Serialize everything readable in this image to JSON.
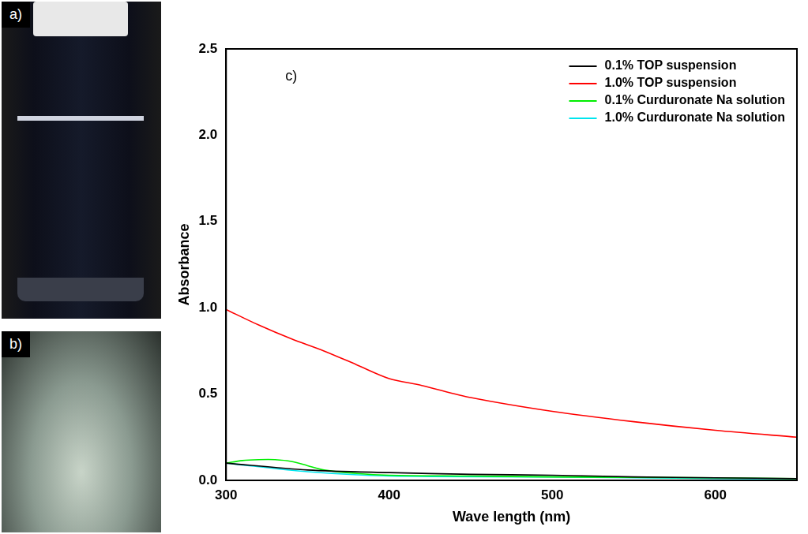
{
  "photo_labels": [
    "a)",
    "b)"
  ],
  "chart_data": {
    "type": "line",
    "annotations": [
      "c)"
    ],
    "x_label": "Wave length (nm)",
    "y_label": "Absorbance",
    "xlim": [
      300,
      650
    ],
    "xticks": [
      300,
      400,
      500,
      600
    ],
    "ylim": [
      0,
      2.5
    ],
    "yticks": [
      {
        "value": 0,
        "label": "0.0"
      },
      {
        "value": 0.5,
        "label": "0.5"
      },
      {
        "value": 1,
        "label": "1.0"
      },
      {
        "value": 1.5,
        "label": "1.5"
      },
      {
        "value": 2,
        "label": "2.0"
      },
      {
        "value": 2.5,
        "label": "2.5"
      }
    ],
    "grid": false,
    "legend": "upper right",
    "series": [
      {
        "name": "0.1% TOP suspension",
        "color": "#000000",
        "x": [
          300,
          350,
          400,
          450,
          500,
          550,
          600,
          650
        ],
        "values": [
          0.1,
          0.06,
          0.045,
          0.035,
          0.03,
          0.02,
          0.015,
          0.01
        ]
      },
      {
        "name": "1.0% TOP suspension",
        "color": "#ff0000",
        "x": [
          300,
          320,
          340,
          360,
          380,
          400,
          420,
          450,
          500,
          550,
          600,
          650
        ],
        "values": [
          0.99,
          0.9,
          0.82,
          0.75,
          0.67,
          0.59,
          0.55,
          0.48,
          0.4,
          0.34,
          0.29,
          0.25
        ]
      },
      {
        "name": "0.1% Curduronate Na solution",
        "color": "#00ee00",
        "x": [
          300,
          310,
          320,
          330,
          340,
          350,
          360,
          380,
          400,
          450,
          500,
          600,
          650
        ],
        "values": [
          0.1,
          0.115,
          0.12,
          0.12,
          0.11,
          0.085,
          0.06,
          0.04,
          0.03,
          0.025,
          0.02,
          0.015,
          0.01
        ]
      },
      {
        "name": "1.0% Curduronate Na solution",
        "color": "#00e5ee",
        "x": [
          300,
          350,
          400,
          500,
          600,
          650
        ],
        "values": [
          0.1,
          0.05,
          0.025,
          0.02,
          0.01,
          0.01
        ]
      }
    ]
  }
}
